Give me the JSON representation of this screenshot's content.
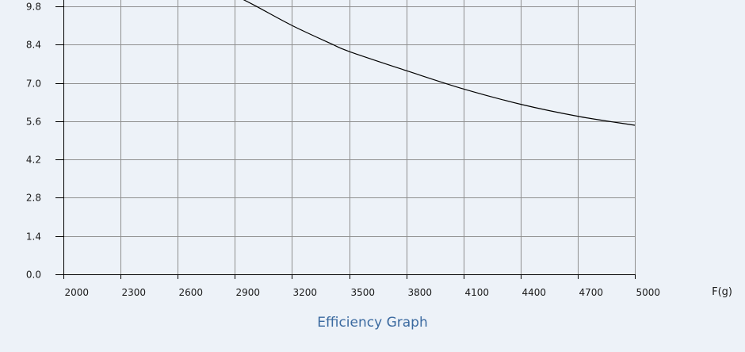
{
  "caption": "Efficiency Graph",
  "chart_data": {
    "type": "line",
    "title": "",
    "xlabel": "F(g)",
    "ylabel": "",
    "xlim": [
      2000,
      5000
    ],
    "ylim": [
      0.0,
      10.25
    ],
    "x_ticks": [
      2000,
      2300,
      2600,
      2900,
      3200,
      3500,
      3800,
      4100,
      4400,
      4700,
      5000
    ],
    "y_ticks": [
      0.0,
      1.4,
      2.8,
      4.2,
      5.6,
      7.0,
      8.4,
      9.8
    ],
    "y_tick_labels": [
      "0.0",
      "1.4",
      "2.8",
      "4.2",
      "5.6",
      "7.0",
      "8.4",
      "9.8"
    ],
    "grid": true,
    "series": [
      {
        "color": "#000000",
        "points": [
          [
            2900,
            10.2
          ],
          [
            3000,
            9.85
          ],
          [
            3200,
            9.1
          ],
          [
            3400,
            8.45
          ],
          [
            3500,
            8.15
          ],
          [
            3800,
            7.45
          ],
          [
            4100,
            6.78
          ],
          [
            4400,
            6.22
          ],
          [
            4700,
            5.78
          ],
          [
            5000,
            5.45
          ]
        ]
      }
    ],
    "colors": {
      "background": "#edf2f8",
      "grid": "#8f8f8f",
      "axis": "#000000",
      "caption": "#3b6aa0"
    }
  }
}
